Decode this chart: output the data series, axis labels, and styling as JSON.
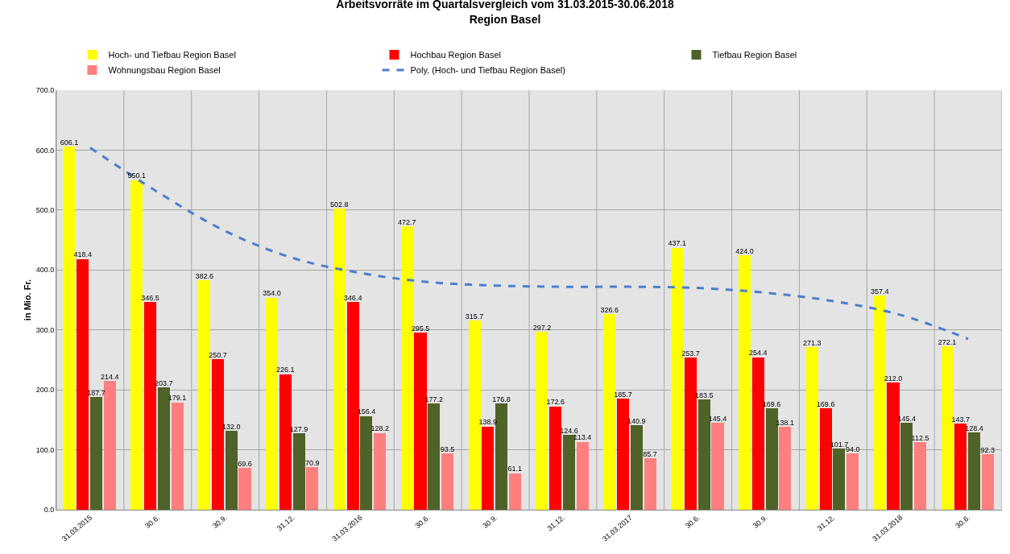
{
  "chart_data": {
    "type": "bar",
    "title": "Arbeitsvorräte im Quartalsvergleich vom 31.03.2015-30.06.2018",
    "subtitle": "Region Basel",
    "ylabel": "in Mio. Fr.",
    "categories": [
      "31.03.2015",
      "30.6.",
      "30.9.",
      "31.12.",
      "31.03.2016",
      "30.6.",
      "30.9.",
      "31.12.",
      "31.03.2017",
      "30.6.",
      "30.9.",
      "31.12.",
      "31.03.2018",
      "30.6."
    ],
    "series": [
      {
        "name": "Hoch- und Tiefbau Region Basel",
        "color": "#ffff00",
        "values": [
          606.1,
          550.1,
          382.6,
          354.0,
          502.8,
          472.7,
          315.7,
          297.2,
          326.6,
          437.1,
          424.0,
          271.3,
          357.4,
          272.1
        ],
        "value_labels": [
          "606.1",
          "550.1",
          "382.6",
          "354.0",
          "502.8",
          "472.7",
          "315.7",
          "297.2",
          "326.6",
          "437.1",
          "424.0",
          "271.3",
          "357.4",
          "272.1"
        ]
      },
      {
        "name": "Hochbau Region Basel",
        "color": "#ff0000",
        "values": [
          418.4,
          346.5,
          250.7,
          226.1,
          346.4,
          295.5,
          138.9,
          172.6,
          185.7,
          253.7,
          254.4,
          169.6,
          212.0,
          143.7
        ],
        "value_labels": [
          "418.4",
          "346.5",
          "250.7",
          "226.1",
          "346.4",
          "295.5",
          "138.9",
          "172.6",
          "185.7",
          "253.7",
          "254.4",
          "169.6",
          "212.0",
          "143.7"
        ]
      },
      {
        "name": "Tiefbau Region Basel",
        "color": "#4f6228",
        "values": [
          187.7,
          203.7,
          132.0,
          127.9,
          156.4,
          177.2,
          176.8,
          124.6,
          140.9,
          183.5,
          169.6,
          101.7,
          145.4,
          128.4
        ],
        "value_labels": [
          "187.7",
          "203.7",
          "132.0",
          "127.9",
          "156.4",
          "177.2",
          "176.8",
          "124.6",
          "140.9",
          "183.5",
          "169.6",
          "101.7",
          "145.4",
          "128.4"
        ]
      },
      {
        "name": "Wohnungsbau Region Basel",
        "color": "#ff7f7f",
        "values": [
          214.4,
          179.1,
          69.6,
          70.9,
          128.2,
          93.5,
          61.1,
          113.4,
          85.7,
          145.4,
          138.1,
          94.0,
          112.5,
          92.3
        ],
        "value_labels": [
          "214.4",
          "179.1",
          "69.6",
          "70.9",
          "128.2",
          "93.5",
          "61.1",
          "113.4",
          "85.7",
          "145.4",
          "138.1",
          "94.0",
          "112.5",
          "92.3"
        ]
      },
      {
        "name": "Poly. (Hoch- und Tiefbau Region Basel)",
        "type": "line",
        "color": "#4a7fcf",
        "line_style": "dashed",
        "marker": "none",
        "values": [
          604,
          530,
          465,
          420,
          395,
          380,
          374,
          372,
          372,
          370,
          362,
          348,
          325,
          285
        ]
      }
    ],
    "ylim": [
      0,
      700
    ],
    "yticks": [
      {
        "value": 0,
        "label": "0.0"
      },
      {
        "value": 100,
        "label": "100.0"
      },
      {
        "value": 200,
        "label": "200.0"
      },
      {
        "value": 300,
        "label": "300.0"
      },
      {
        "value": 400,
        "label": "400.0"
      },
      {
        "value": 500,
        "label": "500.0"
      },
      {
        "value": 600,
        "label": "600.0"
      },
      {
        "value": 700,
        "label": "700.0"
      }
    ],
    "grid": true,
    "legend": "top"
  }
}
